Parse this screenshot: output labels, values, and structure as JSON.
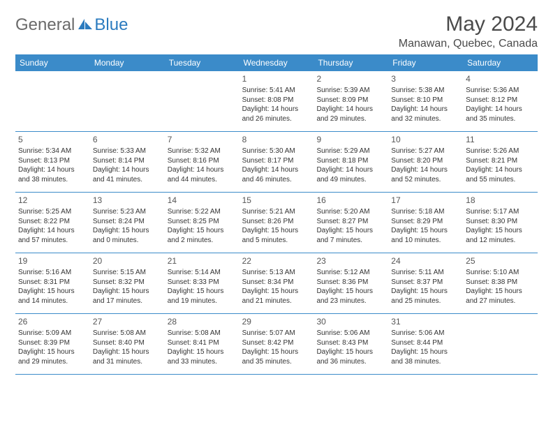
{
  "logo": {
    "text1": "General",
    "text2": "Blue",
    "shape_color": "#2b7bbf"
  },
  "title": "May 2024",
  "location": "Manawan, Quebec, Canada",
  "header_bg": "#3b8bc9",
  "weekdays": [
    "Sunday",
    "Monday",
    "Tuesday",
    "Wednesday",
    "Thursday",
    "Friday",
    "Saturday"
  ],
  "weeks": [
    [
      {
        "num": "",
        "sunrise": "",
        "sunset": "",
        "daylight1": "",
        "daylight2": ""
      },
      {
        "num": "",
        "sunrise": "",
        "sunset": "",
        "daylight1": "",
        "daylight2": ""
      },
      {
        "num": "",
        "sunrise": "",
        "sunset": "",
        "daylight1": "",
        "daylight2": ""
      },
      {
        "num": "1",
        "sunrise": "Sunrise: 5:41 AM",
        "sunset": "Sunset: 8:08 PM",
        "daylight1": "Daylight: 14 hours",
        "daylight2": "and 26 minutes."
      },
      {
        "num": "2",
        "sunrise": "Sunrise: 5:39 AM",
        "sunset": "Sunset: 8:09 PM",
        "daylight1": "Daylight: 14 hours",
        "daylight2": "and 29 minutes."
      },
      {
        "num": "3",
        "sunrise": "Sunrise: 5:38 AM",
        "sunset": "Sunset: 8:10 PM",
        "daylight1": "Daylight: 14 hours",
        "daylight2": "and 32 minutes."
      },
      {
        "num": "4",
        "sunrise": "Sunrise: 5:36 AM",
        "sunset": "Sunset: 8:12 PM",
        "daylight1": "Daylight: 14 hours",
        "daylight2": "and 35 minutes."
      }
    ],
    [
      {
        "num": "5",
        "sunrise": "Sunrise: 5:34 AM",
        "sunset": "Sunset: 8:13 PM",
        "daylight1": "Daylight: 14 hours",
        "daylight2": "and 38 minutes."
      },
      {
        "num": "6",
        "sunrise": "Sunrise: 5:33 AM",
        "sunset": "Sunset: 8:14 PM",
        "daylight1": "Daylight: 14 hours",
        "daylight2": "and 41 minutes."
      },
      {
        "num": "7",
        "sunrise": "Sunrise: 5:32 AM",
        "sunset": "Sunset: 8:16 PM",
        "daylight1": "Daylight: 14 hours",
        "daylight2": "and 44 minutes."
      },
      {
        "num": "8",
        "sunrise": "Sunrise: 5:30 AM",
        "sunset": "Sunset: 8:17 PM",
        "daylight1": "Daylight: 14 hours",
        "daylight2": "and 46 minutes."
      },
      {
        "num": "9",
        "sunrise": "Sunrise: 5:29 AM",
        "sunset": "Sunset: 8:18 PM",
        "daylight1": "Daylight: 14 hours",
        "daylight2": "and 49 minutes."
      },
      {
        "num": "10",
        "sunrise": "Sunrise: 5:27 AM",
        "sunset": "Sunset: 8:20 PM",
        "daylight1": "Daylight: 14 hours",
        "daylight2": "and 52 minutes."
      },
      {
        "num": "11",
        "sunrise": "Sunrise: 5:26 AM",
        "sunset": "Sunset: 8:21 PM",
        "daylight1": "Daylight: 14 hours",
        "daylight2": "and 55 minutes."
      }
    ],
    [
      {
        "num": "12",
        "sunrise": "Sunrise: 5:25 AM",
        "sunset": "Sunset: 8:22 PM",
        "daylight1": "Daylight: 14 hours",
        "daylight2": "and 57 minutes."
      },
      {
        "num": "13",
        "sunrise": "Sunrise: 5:23 AM",
        "sunset": "Sunset: 8:24 PM",
        "daylight1": "Daylight: 15 hours",
        "daylight2": "and 0 minutes."
      },
      {
        "num": "14",
        "sunrise": "Sunrise: 5:22 AM",
        "sunset": "Sunset: 8:25 PM",
        "daylight1": "Daylight: 15 hours",
        "daylight2": "and 2 minutes."
      },
      {
        "num": "15",
        "sunrise": "Sunrise: 5:21 AM",
        "sunset": "Sunset: 8:26 PM",
        "daylight1": "Daylight: 15 hours",
        "daylight2": "and 5 minutes."
      },
      {
        "num": "16",
        "sunrise": "Sunrise: 5:20 AM",
        "sunset": "Sunset: 8:27 PM",
        "daylight1": "Daylight: 15 hours",
        "daylight2": "and 7 minutes."
      },
      {
        "num": "17",
        "sunrise": "Sunrise: 5:18 AM",
        "sunset": "Sunset: 8:29 PM",
        "daylight1": "Daylight: 15 hours",
        "daylight2": "and 10 minutes."
      },
      {
        "num": "18",
        "sunrise": "Sunrise: 5:17 AM",
        "sunset": "Sunset: 8:30 PM",
        "daylight1": "Daylight: 15 hours",
        "daylight2": "and 12 minutes."
      }
    ],
    [
      {
        "num": "19",
        "sunrise": "Sunrise: 5:16 AM",
        "sunset": "Sunset: 8:31 PM",
        "daylight1": "Daylight: 15 hours",
        "daylight2": "and 14 minutes."
      },
      {
        "num": "20",
        "sunrise": "Sunrise: 5:15 AM",
        "sunset": "Sunset: 8:32 PM",
        "daylight1": "Daylight: 15 hours",
        "daylight2": "and 17 minutes."
      },
      {
        "num": "21",
        "sunrise": "Sunrise: 5:14 AM",
        "sunset": "Sunset: 8:33 PM",
        "daylight1": "Daylight: 15 hours",
        "daylight2": "and 19 minutes."
      },
      {
        "num": "22",
        "sunrise": "Sunrise: 5:13 AM",
        "sunset": "Sunset: 8:34 PM",
        "daylight1": "Daylight: 15 hours",
        "daylight2": "and 21 minutes."
      },
      {
        "num": "23",
        "sunrise": "Sunrise: 5:12 AM",
        "sunset": "Sunset: 8:36 PM",
        "daylight1": "Daylight: 15 hours",
        "daylight2": "and 23 minutes."
      },
      {
        "num": "24",
        "sunrise": "Sunrise: 5:11 AM",
        "sunset": "Sunset: 8:37 PM",
        "daylight1": "Daylight: 15 hours",
        "daylight2": "and 25 minutes."
      },
      {
        "num": "25",
        "sunrise": "Sunrise: 5:10 AM",
        "sunset": "Sunset: 8:38 PM",
        "daylight1": "Daylight: 15 hours",
        "daylight2": "and 27 minutes."
      }
    ],
    [
      {
        "num": "26",
        "sunrise": "Sunrise: 5:09 AM",
        "sunset": "Sunset: 8:39 PM",
        "daylight1": "Daylight: 15 hours",
        "daylight2": "and 29 minutes."
      },
      {
        "num": "27",
        "sunrise": "Sunrise: 5:08 AM",
        "sunset": "Sunset: 8:40 PM",
        "daylight1": "Daylight: 15 hours",
        "daylight2": "and 31 minutes."
      },
      {
        "num": "28",
        "sunrise": "Sunrise: 5:08 AM",
        "sunset": "Sunset: 8:41 PM",
        "daylight1": "Daylight: 15 hours",
        "daylight2": "and 33 minutes."
      },
      {
        "num": "29",
        "sunrise": "Sunrise: 5:07 AM",
        "sunset": "Sunset: 8:42 PM",
        "daylight1": "Daylight: 15 hours",
        "daylight2": "and 35 minutes."
      },
      {
        "num": "30",
        "sunrise": "Sunrise: 5:06 AM",
        "sunset": "Sunset: 8:43 PM",
        "daylight1": "Daylight: 15 hours",
        "daylight2": "and 36 minutes."
      },
      {
        "num": "31",
        "sunrise": "Sunrise: 5:06 AM",
        "sunset": "Sunset: 8:44 PM",
        "daylight1": "Daylight: 15 hours",
        "daylight2": "and 38 minutes."
      },
      {
        "num": "",
        "sunrise": "",
        "sunset": "",
        "daylight1": "",
        "daylight2": ""
      }
    ]
  ]
}
